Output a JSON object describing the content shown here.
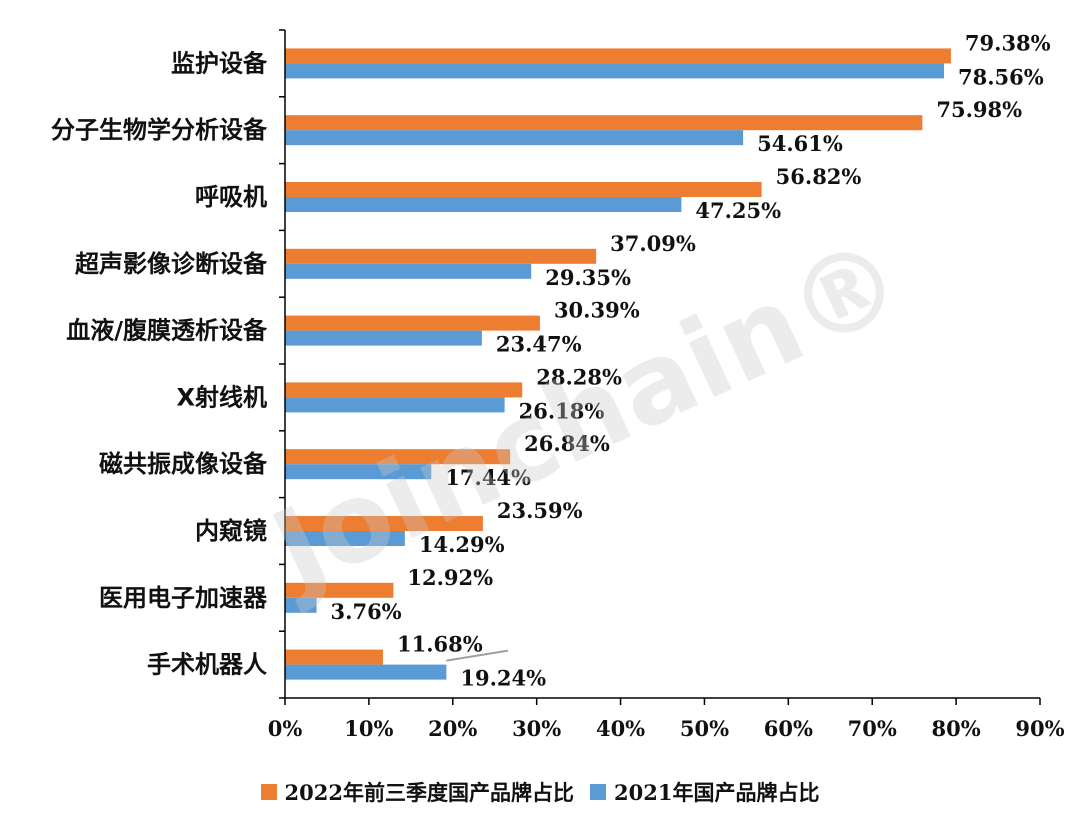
{
  "chart_data": {
    "type": "bar",
    "orientation": "horizontal",
    "categories": [
      "监护设备",
      "分子生物学分析设备",
      "呼吸机",
      "超声影像诊断设备",
      "血液/腹膜透析设备",
      "X射线机",
      "磁共振成像设备",
      "内窥镜",
      "医用电子加速器",
      "手术机器人"
    ],
    "series": [
      {
        "name": "2022年前三季度国产品牌占比",
        "color": "#ED7D31",
        "values": [
          79.38,
          75.98,
          56.82,
          37.09,
          30.39,
          28.28,
          26.84,
          23.59,
          12.92,
          11.68
        ],
        "labels": [
          "79.38%",
          "75.98%",
          "56.82%",
          "37.09%",
          "30.39%",
          "28.28%",
          "26.84%",
          "23.59%",
          "12.92%",
          "11.68%"
        ]
      },
      {
        "name": "2021年国产品牌占比",
        "color": "#5B9BD5",
        "values": [
          78.56,
          54.61,
          47.25,
          29.35,
          23.47,
          26.18,
          17.44,
          14.29,
          3.76,
          19.24
        ],
        "labels": [
          "78.56%",
          "54.61%",
          "47.25%",
          "29.35%",
          "23.47%",
          "26.18%",
          "17.44%",
          "14.29%",
          "3.76%",
          "19.24%"
        ]
      }
    ],
    "xlim": [
      0,
      90
    ],
    "xticks": [
      "0%",
      "10%",
      "20%",
      "30%",
      "40%",
      "50%",
      "60%",
      "70%",
      "80%",
      "90%"
    ],
    "grid": false,
    "legend_position": "bottom"
  },
  "legend": {
    "s0": "2022年前三季度国产品牌占比",
    "s1": "2021年国产品牌占比"
  },
  "watermark": "Joinchain®"
}
